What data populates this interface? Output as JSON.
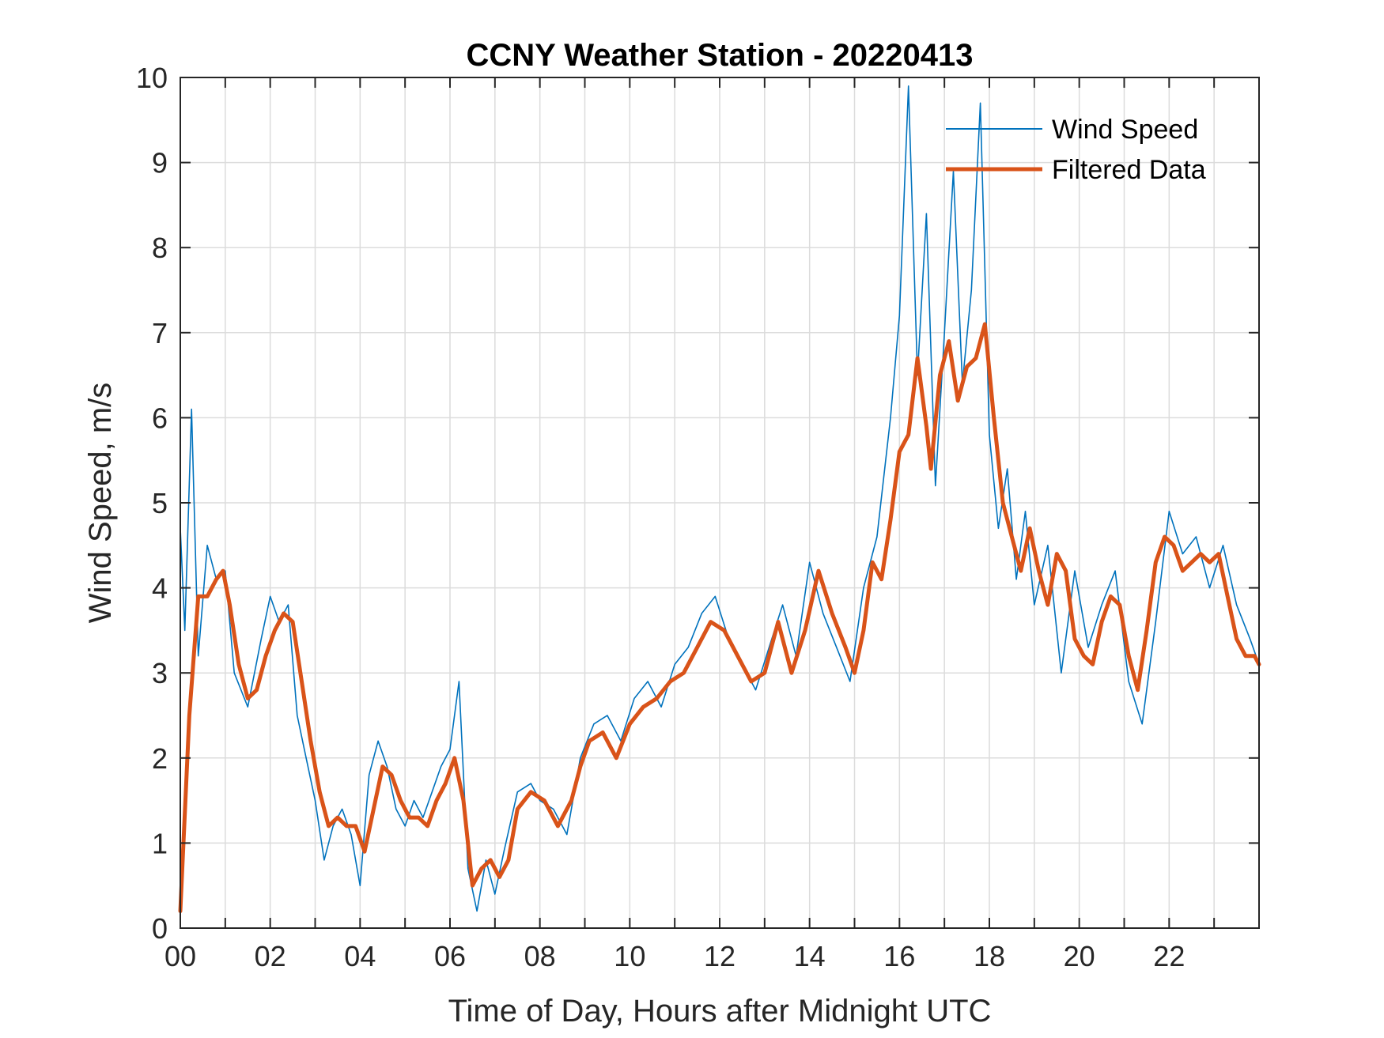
{
  "chart_data": {
    "type": "line",
    "title": "CCNY Weather Station - 20220413",
    "xlabel": "Time of Day, Hours after Midnight UTC",
    "ylabel": "Wind Speed, m/s",
    "xlim": [
      0,
      24
    ],
    "ylim": [
      0,
      10
    ],
    "grid": true,
    "legend_position": "top-right",
    "x_ticks": [
      {
        "value": 0,
        "label": "00"
      },
      {
        "value": 2,
        "label": "02"
      },
      {
        "value": 4,
        "label": "04"
      },
      {
        "value": 6,
        "label": "06"
      },
      {
        "value": 8,
        "label": "08"
      },
      {
        "value": 10,
        "label": "10"
      },
      {
        "value": 12,
        "label": "12"
      },
      {
        "value": 14,
        "label": "14"
      },
      {
        "value": 16,
        "label": "16"
      },
      {
        "value": 18,
        "label": "18"
      },
      {
        "value": 20,
        "label": "20"
      },
      {
        "value": 22,
        "label": "22"
      }
    ],
    "y_ticks": [
      {
        "value": 0,
        "label": "0"
      },
      {
        "value": 1,
        "label": "1"
      },
      {
        "value": 2,
        "label": "2"
      },
      {
        "value": 3,
        "label": "3"
      },
      {
        "value": 4,
        "label": "4"
      },
      {
        "value": 5,
        "label": "5"
      },
      {
        "value": 6,
        "label": "6"
      },
      {
        "value": 7,
        "label": "7"
      },
      {
        "value": 8,
        "label": "8"
      },
      {
        "value": 9,
        "label": "9"
      },
      {
        "value": 10,
        "label": "10"
      }
    ],
    "series": [
      {
        "name": "Wind Speed",
        "color": "#0072BD",
        "style": "thin",
        "note": "raw high-frequency samples; approximate envelope",
        "x": [
          0,
          0.1,
          0.25,
          0.4,
          0.6,
          0.8,
          1.0,
          1.2,
          1.5,
          1.8,
          2.0,
          2.2,
          2.4,
          2.6,
          2.8,
          3.0,
          3.2,
          3.4,
          3.6,
          3.8,
          4.0,
          4.2,
          4.4,
          4.6,
          4.8,
          5.0,
          5.2,
          5.4,
          5.6,
          5.8,
          6.0,
          6.2,
          6.4,
          6.6,
          6.8,
          7.0,
          7.2,
          7.5,
          7.8,
          8.0,
          8.3,
          8.6,
          8.9,
          9.2,
          9.5,
          9.8,
          10.1,
          10.4,
          10.7,
          11.0,
          11.3,
          11.6,
          11.9,
          12.2,
          12.5,
          12.8,
          13.1,
          13.4,
          13.7,
          14.0,
          14.3,
          14.6,
          14.9,
          15.2,
          15.5,
          15.8,
          16.0,
          16.2,
          16.4,
          16.6,
          16.8,
          17.0,
          17.2,
          17.4,
          17.6,
          17.8,
          18.0,
          18.2,
          18.4,
          18.6,
          18.8,
          19.0,
          19.3,
          19.6,
          19.9,
          20.2,
          20.5,
          20.8,
          21.1,
          21.4,
          21.7,
          22.0,
          22.3,
          22.6,
          22.9,
          23.2,
          23.5,
          23.8,
          24.0
        ],
        "y": [
          4.7,
          3.5,
          6.1,
          3.2,
          4.5,
          4.1,
          4.2,
          3.0,
          2.6,
          3.4,
          3.9,
          3.6,
          3.8,
          2.5,
          2.0,
          1.5,
          0.8,
          1.2,
          1.4,
          1.1,
          0.5,
          1.8,
          2.2,
          1.9,
          1.4,
          1.2,
          1.5,
          1.3,
          1.6,
          1.9,
          2.1,
          2.9,
          0.7,
          0.2,
          0.8,
          0.4,
          0.9,
          1.6,
          1.7,
          1.5,
          1.4,
          1.1,
          2.0,
          2.4,
          2.5,
          2.2,
          2.7,
          2.9,
          2.6,
          3.1,
          3.3,
          3.7,
          3.9,
          3.4,
          3.1,
          2.8,
          3.3,
          3.8,
          3.2,
          4.3,
          3.7,
          3.3,
          2.9,
          4.0,
          4.6,
          6.0,
          7.2,
          9.9,
          6.5,
          8.4,
          5.2,
          7.0,
          8.9,
          6.4,
          7.5,
          9.7,
          5.8,
          4.7,
          5.4,
          4.1,
          4.9,
          3.8,
          4.5,
          3.0,
          4.2,
          3.3,
          3.8,
          4.2,
          2.9,
          2.4,
          3.6,
          4.9,
          4.4,
          4.6,
          4.0,
          4.5,
          3.8,
          3.4,
          3.1
        ]
      },
      {
        "name": "Filtered Data",
        "color": "#D95319",
        "style": "thick",
        "x": [
          0,
          0.2,
          0.4,
          0.6,
          0.8,
          0.95,
          1.1,
          1.3,
          1.5,
          1.7,
          1.9,
          2.1,
          2.3,
          2.5,
          2.7,
          2.9,
          3.1,
          3.3,
          3.5,
          3.7,
          3.9,
          4.1,
          4.3,
          4.5,
          4.7,
          4.9,
          5.1,
          5.3,
          5.5,
          5.7,
          5.9,
          6.1,
          6.3,
          6.5,
          6.7,
          6.9,
          7.1,
          7.3,
          7.5,
          7.8,
          8.1,
          8.4,
          8.7,
          8.9,
          9.1,
          9.4,
          9.7,
          10.0,
          10.3,
          10.6,
          10.9,
          11.2,
          11.5,
          11.8,
          12.1,
          12.4,
          12.7,
          13.0,
          13.3,
          13.6,
          13.9,
          14.2,
          14.5,
          14.8,
          15.0,
          15.2,
          15.4,
          15.6,
          15.8,
          16.0,
          16.2,
          16.4,
          16.6,
          16.7,
          16.9,
          17.1,
          17.3,
          17.5,
          17.7,
          17.9,
          18.1,
          18.3,
          18.5,
          18.7,
          18.9,
          19.1,
          19.3,
          19.5,
          19.7,
          19.9,
          20.1,
          20.3,
          20.5,
          20.7,
          20.9,
          21.1,
          21.3,
          21.5,
          21.7,
          21.9,
          22.1,
          22.3,
          22.5,
          22.7,
          22.9,
          23.1,
          23.3,
          23.5,
          23.7,
          23.9,
          24.0
        ],
        "y": [
          0.2,
          2.5,
          3.9,
          3.9,
          4.1,
          4.2,
          3.8,
          3.1,
          2.7,
          2.8,
          3.2,
          3.5,
          3.7,
          3.6,
          2.9,
          2.2,
          1.6,
          1.2,
          1.3,
          1.2,
          1.2,
          0.9,
          1.4,
          1.9,
          1.8,
          1.5,
          1.3,
          1.3,
          1.2,
          1.5,
          1.7,
          2.0,
          1.5,
          0.5,
          0.7,
          0.8,
          0.6,
          0.8,
          1.4,
          1.6,
          1.5,
          1.2,
          1.5,
          1.9,
          2.2,
          2.3,
          2.0,
          2.4,
          2.6,
          2.7,
          2.9,
          3.0,
          3.3,
          3.6,
          3.5,
          3.2,
          2.9,
          3.0,
          3.6,
          3.0,
          3.5,
          4.2,
          3.7,
          3.3,
          3.0,
          3.5,
          4.3,
          4.1,
          4.8,
          5.6,
          5.8,
          6.7,
          5.9,
          5.4,
          6.5,
          6.9,
          6.2,
          6.6,
          6.7,
          7.1,
          6.0,
          5.0,
          4.6,
          4.2,
          4.7,
          4.2,
          3.8,
          4.4,
          4.2,
          3.4,
          3.2,
          3.1,
          3.6,
          3.9,
          3.8,
          3.2,
          2.8,
          3.5,
          4.3,
          4.6,
          4.5,
          4.2,
          4.3,
          4.4,
          4.3,
          4.4,
          3.9,
          3.4,
          3.2,
          3.2,
          3.1
        ]
      }
    ]
  }
}
